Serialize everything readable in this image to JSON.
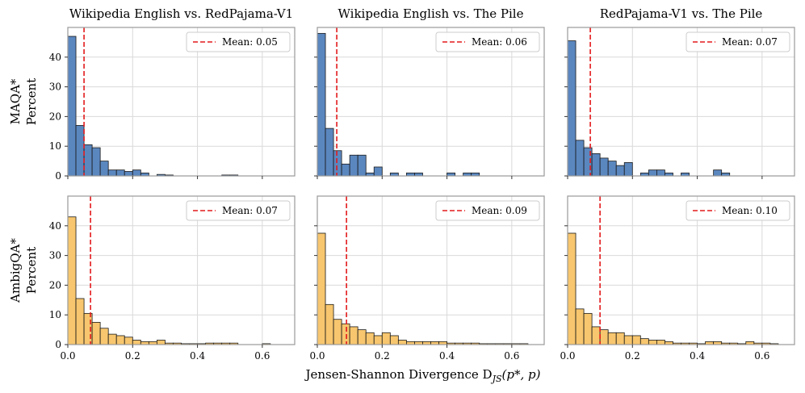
{
  "figure": {
    "xlabel": "Jensen-Shannon Divergence D",
    "xlabel_sub": "JS",
    "xlabel_args": "(p*, p)"
  },
  "colors": {
    "blue": "#5b87bf",
    "orange": "#f7c66e",
    "mean_line": "#e31a1c",
    "edge": "#1a1a1a",
    "grid": "#d9d9d9",
    "axes": "#9a9a9a"
  },
  "chart_data": [
    {
      "type": "bar",
      "row": 0,
      "col": 0,
      "color": "blue",
      "title": "Wikipedia English vs. RedPajama-V1",
      "ylabel": "MAQA* Percent",
      "xlim": [
        0,
        0.7
      ],
      "ylim": [
        0,
        50
      ],
      "xticks": [
        "0.0",
        "0.2",
        "0.4",
        "0.6"
      ],
      "yticks": [
        "0",
        "10",
        "20",
        "30",
        "40"
      ],
      "bin_width": 0.025,
      "mean": 0.05,
      "legend": "Mean: 0.05",
      "values": [
        47,
        17,
        10.5,
        9.5,
        5,
        2,
        2,
        1.5,
        2,
        1,
        0,
        0.5,
        0.3,
        0,
        0,
        0,
        0,
        0,
        0,
        0.3,
        0.3,
        0,
        0,
        0,
        0,
        0,
        0,
        0
      ]
    },
    {
      "type": "bar",
      "row": 0,
      "col": 1,
      "color": "blue",
      "title": "Wikipedia English vs. The Pile",
      "ylabel": "",
      "xlim": [
        0,
        0.7
      ],
      "ylim": [
        0,
        50
      ],
      "xticks": [
        "0.0",
        "0.2",
        "0.4",
        "0.6"
      ],
      "yticks": [],
      "bin_width": 0.025,
      "mean": 0.06,
      "legend": "Mean: 0.06",
      "values": [
        48,
        16,
        8.5,
        4,
        7,
        7,
        1,
        3,
        0,
        1,
        0,
        1,
        1,
        0,
        0,
        0,
        1,
        0,
        1,
        1,
        0,
        0,
        0,
        0,
        0,
        0,
        0,
        0
      ]
    },
    {
      "type": "bar",
      "row": 0,
      "col": 2,
      "color": "blue",
      "title": "RedPajama-V1 vs. The Pile",
      "ylabel": "",
      "xlim": [
        0,
        0.7
      ],
      "ylim": [
        0,
        50
      ],
      "xticks": [
        "0.0",
        "0.2",
        "0.4",
        "0.6"
      ],
      "yticks": [],
      "bin_width": 0.025,
      "mean": 0.07,
      "legend": "Mean: 0.07",
      "values": [
        45.5,
        12,
        9.5,
        7.5,
        6,
        5,
        3.5,
        4.5,
        0,
        1,
        2,
        2,
        1,
        0,
        1,
        0,
        0,
        0,
        2,
        1,
        0,
        0,
        0,
        0,
        0,
        0,
        0,
        0
      ]
    },
    {
      "type": "bar",
      "row": 1,
      "col": 0,
      "color": "orange",
      "title": "",
      "ylabel": "AmbigQA* Percent",
      "xlim": [
        0,
        0.7
      ],
      "ylim": [
        0,
        50
      ],
      "xticks": [
        "0.0",
        "0.2",
        "0.4",
        "0.6"
      ],
      "yticks": [
        "0",
        "10",
        "20",
        "30",
        "40"
      ],
      "bin_width": 0.025,
      "mean": 0.07,
      "legend": "Mean: 0.07",
      "values": [
        43,
        15.5,
        10.5,
        7.5,
        5.5,
        3.5,
        3,
        2.5,
        1.5,
        1,
        1,
        1.5,
        0.5,
        0.5,
        0.3,
        0.3,
        0.3,
        0.5,
        0.5,
        0.5,
        0.5,
        0,
        0,
        0,
        0.3,
        0,
        0,
        0
      ]
    },
    {
      "type": "bar",
      "row": 1,
      "col": 1,
      "color": "orange",
      "title": "",
      "ylabel": "",
      "xlim": [
        0,
        0.7
      ],
      "ylim": [
        0,
        50
      ],
      "xticks": [
        "0.0",
        "0.2",
        "0.4",
        "0.6"
      ],
      "yticks": [],
      "bin_width": 0.025,
      "mean": 0.09,
      "legend": "Mean: 0.09",
      "values": [
        37.5,
        13.5,
        8.5,
        7,
        6,
        5,
        4,
        3,
        4,
        3,
        1.5,
        1,
        1,
        1,
        1,
        1,
        0.5,
        0.5,
        0.5,
        0.5,
        0.3,
        0.3,
        0.3,
        0.3,
        0.3,
        0.3,
        0,
        0
      ]
    },
    {
      "type": "bar",
      "row": 1,
      "col": 2,
      "color": "orange",
      "title": "",
      "ylabel": "",
      "xlim": [
        0,
        0.7
      ],
      "ylim": [
        0,
        50
      ],
      "xticks": [
        "0.0",
        "0.2",
        "0.4",
        "0.6"
      ],
      "yticks": [],
      "bin_width": 0.025,
      "mean": 0.1,
      "legend": "Mean: 0.10",
      "values": [
        37.5,
        12,
        10.5,
        6,
        5,
        4,
        4,
        3,
        3,
        2,
        1.5,
        1.5,
        1,
        0.5,
        0.5,
        0.5,
        0.3,
        1,
        1,
        0.5,
        0.5,
        0.3,
        1,
        0.5,
        0.5,
        0.3,
        0,
        0
      ]
    }
  ]
}
